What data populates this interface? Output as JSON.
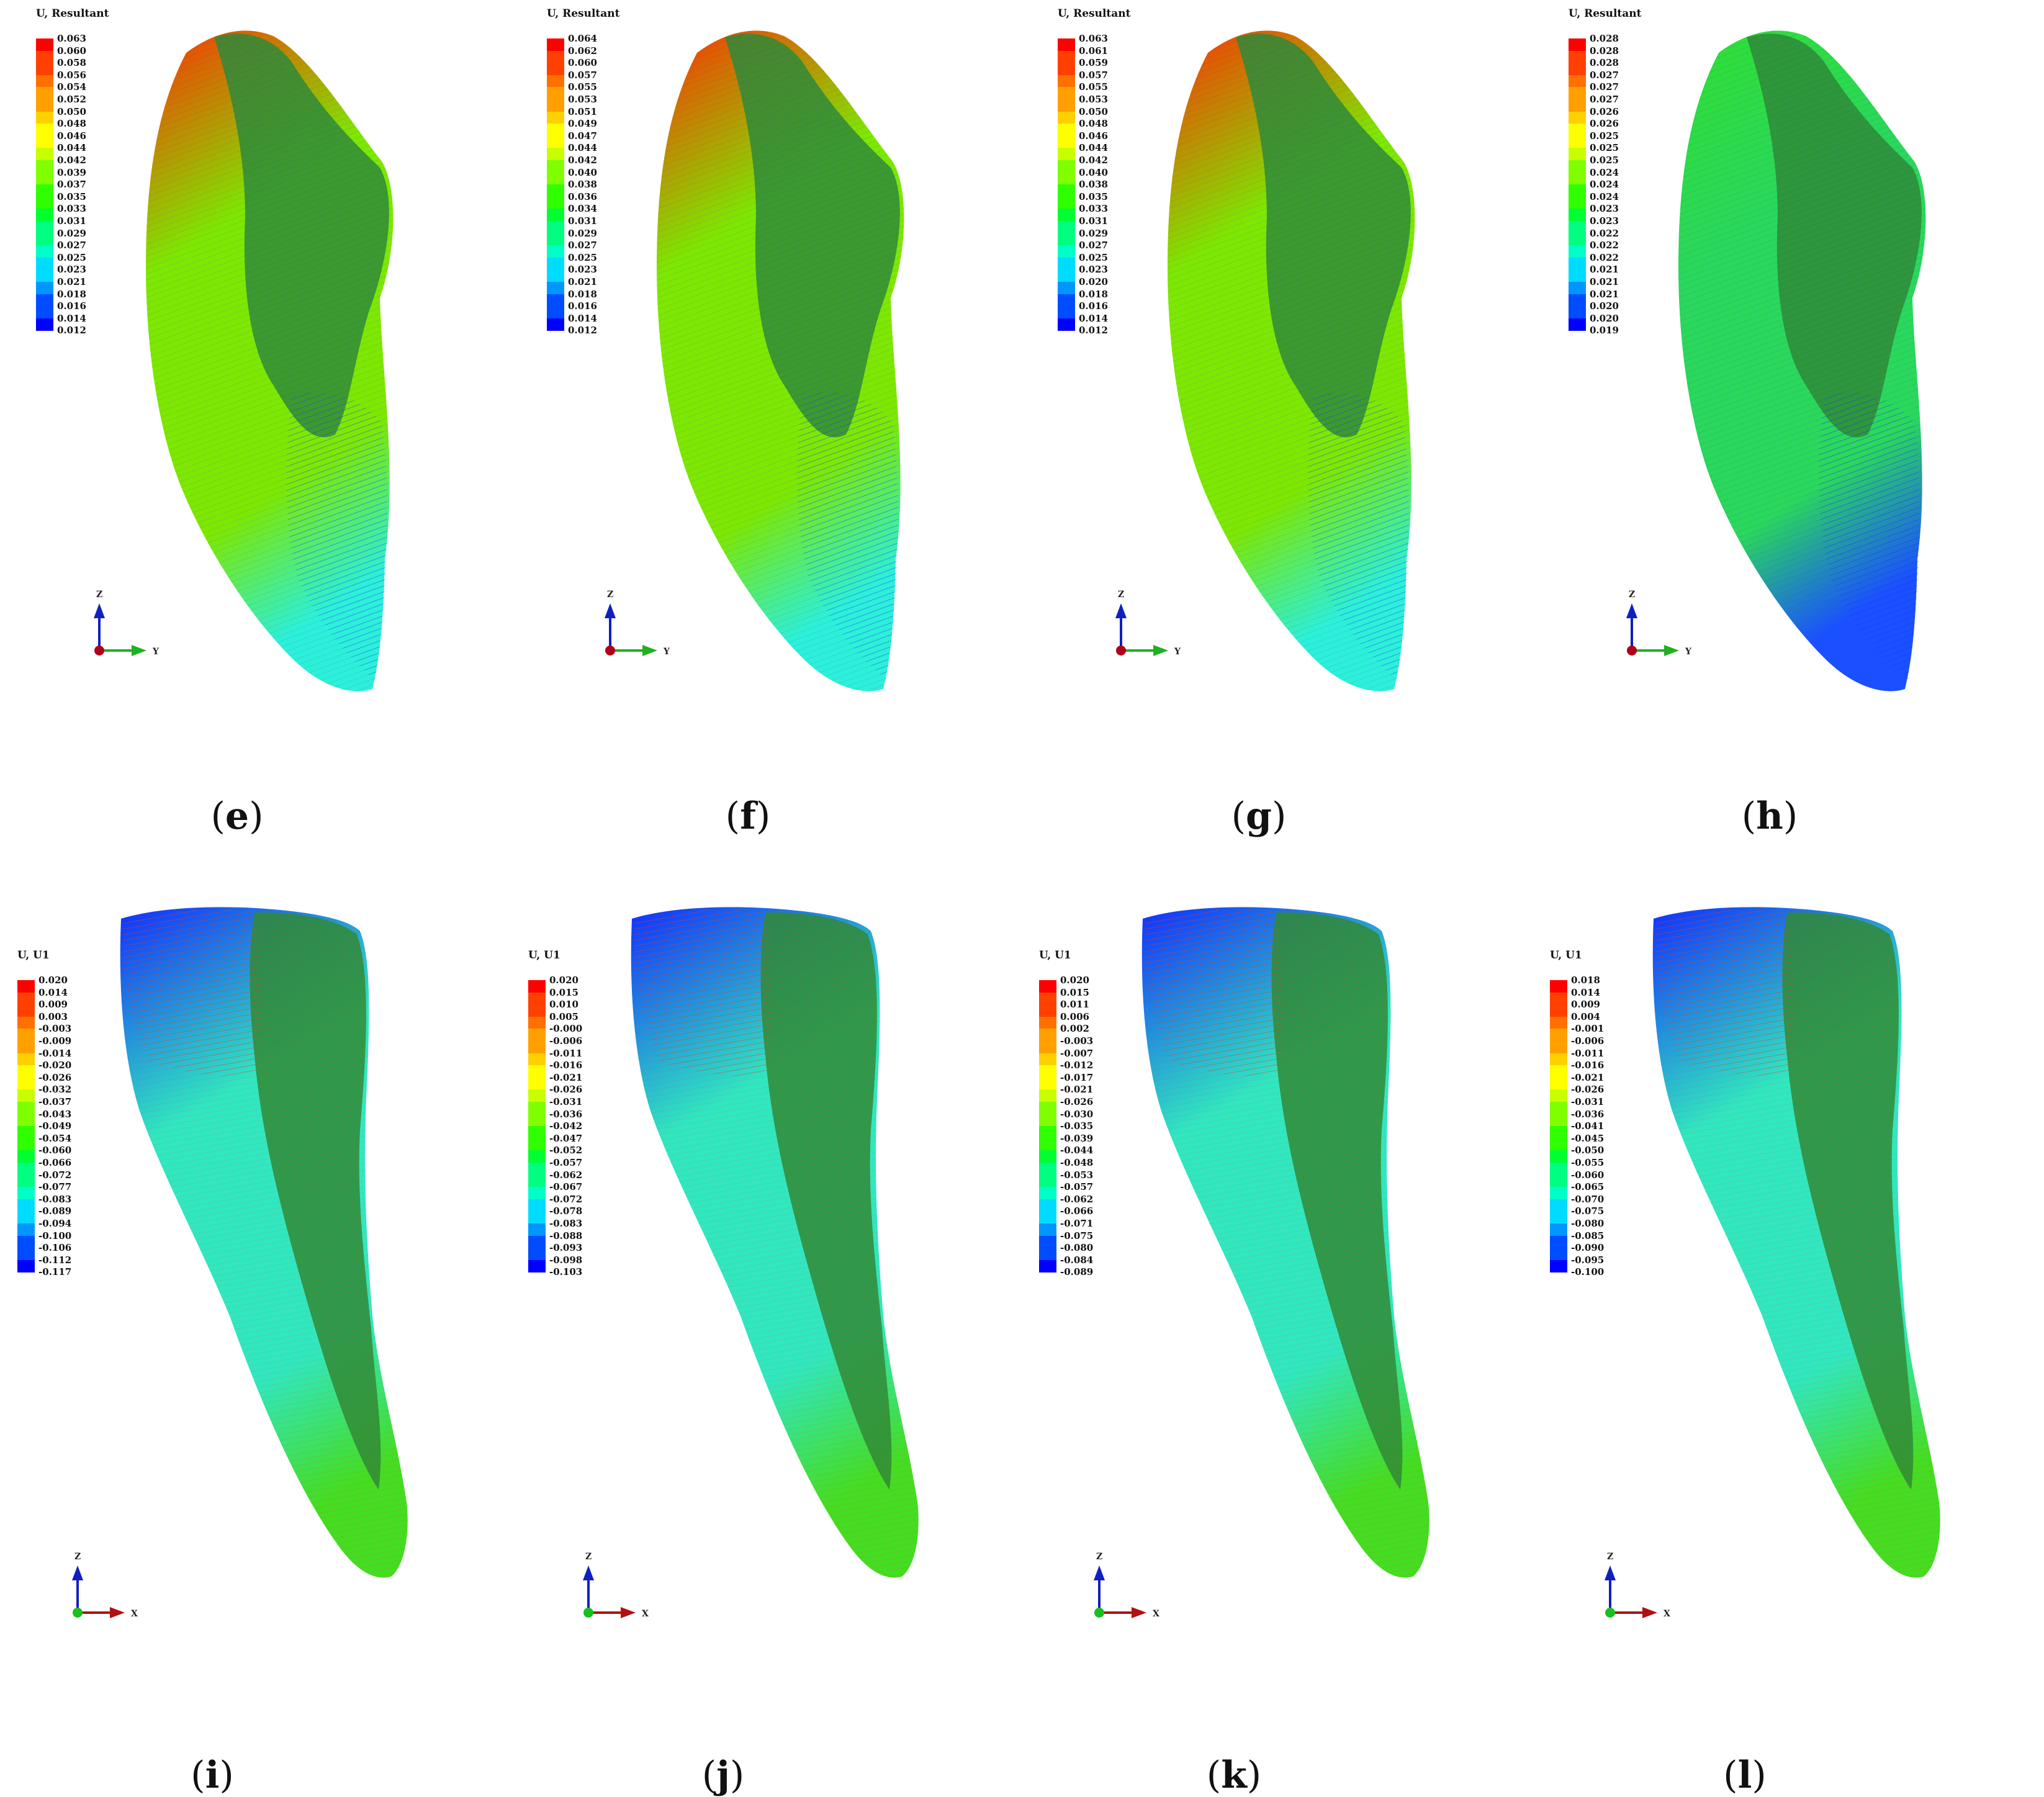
{
  "colormap": [
    "#0000ff",
    "#004cff",
    "#0096ff",
    "#00dcff",
    "#00ffc8",
    "#00ff80",
    "#00ff30",
    "#30ff00",
    "#80ff00",
    "#c8ff00",
    "#ffff00",
    "#ffd000",
    "#ffa000",
    "#ff7000",
    "#ff4000",
    "#ff0000"
  ],
  "panels": [
    {
      "id": "e",
      "caption": "e",
      "row": 0,
      "col": 0,
      "legend_title": "U, Resultant",
      "legend_values": [
        "0.063",
        "0.060",
        "0.058",
        "0.056",
        "0.054",
        "0.052",
        "0.050",
        "0.048",
        "0.046",
        "0.044",
        "0.042",
        "0.039",
        "0.037",
        "0.035",
        "0.033",
        "0.031",
        "0.029",
        "0.027",
        "0.025",
        "0.023",
        "0.021",
        "0.018",
        "0.016",
        "0.014",
        "0.012"
      ],
      "triad": {
        "up": "Z",
        "right": "Y",
        "out_color": "#b0001a"
      },
      "surface": {
        "top": "#ff3000",
        "mid": "#7ee800",
        "bottom": "#2cf0d8",
        "body": "#2f8b36",
        "arrows": "#1a3cff"
      }
    },
    {
      "id": "f",
      "caption": "f",
      "row": 0,
      "col": 1,
      "legend_title": "U, Resultant",
      "legend_values": [
        "0.064",
        "0.062",
        "0.060",
        "0.057",
        "0.055",
        "0.053",
        "0.051",
        "0.049",
        "0.047",
        "0.044",
        "0.042",
        "0.040",
        "0.038",
        "0.036",
        "0.034",
        "0.031",
        "0.029",
        "0.027",
        "0.025",
        "0.023",
        "0.021",
        "0.018",
        "0.016",
        "0.014",
        "0.012"
      ],
      "triad": {
        "up": "Z",
        "right": "Y",
        "out_color": "#b0001a"
      },
      "surface": {
        "top": "#ff3000",
        "mid": "#7ee800",
        "bottom": "#2cf0d8",
        "body": "#2f8b36",
        "arrows": "#1a3cff"
      }
    },
    {
      "id": "g",
      "caption": "g",
      "row": 0,
      "col": 2,
      "legend_title": "U, Resultant",
      "legend_values": [
        "0.063",
        "0.061",
        "0.059",
        "0.057",
        "0.055",
        "0.053",
        "0.050",
        "0.048",
        "0.046",
        "0.044",
        "0.042",
        "0.040",
        "0.038",
        "0.035",
        "0.033",
        "0.031",
        "0.029",
        "0.027",
        "0.025",
        "0.023",
        "0.020",
        "0.018",
        "0.016",
        "0.014",
        "0.012"
      ],
      "triad": {
        "up": "Z",
        "right": "Y",
        "out_color": "#b0001a"
      },
      "surface": {
        "top": "#ff3000",
        "mid": "#7ee800",
        "bottom": "#2cf0d8",
        "body": "#2f8b36",
        "arrows": "#1a3cff"
      }
    },
    {
      "id": "h",
      "caption": "h",
      "row": 0,
      "col": 3,
      "legend_title": "U, Resultant",
      "legend_values": [
        "0.028",
        "0.028",
        "0.028",
        "0.027",
        "0.027",
        "0.027",
        "0.026",
        "0.026",
        "0.025",
        "0.025",
        "0.025",
        "0.024",
        "0.024",
        "0.024",
        "0.023",
        "0.023",
        "0.022",
        "0.022",
        "0.022",
        "0.021",
        "0.021",
        "0.021",
        "0.020",
        "0.020",
        "0.019"
      ],
      "triad": {
        "up": "Z",
        "right": "Y",
        "out_color": "#b0001a"
      },
      "surface": {
        "top": "#30e030",
        "mid": "#2ad85a",
        "bottom": "#1a50ff",
        "body": "#2f8b36",
        "arrows": "#1a2cff"
      }
    },
    {
      "id": "i",
      "caption": "i",
      "row": 1,
      "col": 0,
      "legend_title": "U, U1",
      "legend_values": [
        "0.020",
        "0.014",
        "0.009",
        "0.003",
        "-0.003",
        "-0.009",
        "-0.014",
        "-0.020",
        "-0.026",
        "-0.032",
        "-0.037",
        "-0.043",
        "-0.049",
        "-0.054",
        "-0.060",
        "-0.066",
        "-0.072",
        "-0.077",
        "-0.083",
        "-0.089",
        "-0.094",
        "-0.100",
        "-0.106",
        "-0.112",
        "-0.117"
      ],
      "triad": {
        "up": "Z",
        "right": "X",
        "out_color": "#18c020"
      },
      "surface": {
        "top": "#1030ff",
        "mid": "#30e8c0",
        "bottom": "#44dd22",
        "body": "#2f8b36",
        "arrows": "#ff3010"
      }
    },
    {
      "id": "j",
      "caption": "j",
      "row": 1,
      "col": 1,
      "legend_title": "U, U1",
      "legend_values": [
        "0.020",
        "0.015",
        "0.010",
        "0.005",
        "-0.000",
        "-0.006",
        "-0.011",
        "-0.016",
        "-0.021",
        "-0.026",
        "-0.031",
        "-0.036",
        "-0.042",
        "-0.047",
        "-0.052",
        "-0.057",
        "-0.062",
        "-0.067",
        "-0.072",
        "-0.078",
        "-0.083",
        "-0.088",
        "-0.093",
        "-0.098",
        "-0.103"
      ],
      "triad": {
        "up": "Z",
        "right": "X",
        "out_color": "#18c020"
      },
      "surface": {
        "top": "#1030ff",
        "mid": "#30e8c0",
        "bottom": "#44dd22",
        "body": "#2f8b36",
        "arrows": "#ff3010"
      }
    },
    {
      "id": "k",
      "caption": "k",
      "row": 1,
      "col": 2,
      "legend_title": "U, U1",
      "legend_values": [
        "0.020",
        "0.015",
        "0.011",
        "0.006",
        "0.002",
        "-0.003",
        "-0.007",
        "-0.012",
        "-0.017",
        "-0.021",
        "-0.026",
        "-0.030",
        "-0.035",
        "-0.039",
        "-0.044",
        "-0.048",
        "-0.053",
        "-0.057",
        "-0.062",
        "-0.066",
        "-0.071",
        "-0.075",
        "-0.080",
        "-0.084",
        "-0.089"
      ],
      "triad": {
        "up": "Z",
        "right": "X",
        "out_color": "#18c020"
      },
      "surface": {
        "top": "#1030ff",
        "mid": "#30e8c0",
        "bottom": "#44dd22",
        "body": "#2f8b36",
        "arrows": "#ff3010"
      }
    },
    {
      "id": "l",
      "caption": "l",
      "row": 1,
      "col": 3,
      "legend_title": "U, U1",
      "legend_values": [
        "0.018",
        "0.014",
        "0.009",
        "0.004",
        "-0.001",
        "-0.006",
        "-0.011",
        "-0.016",
        "-0.021",
        "-0.026",
        "-0.031",
        "-0.036",
        "-0.041",
        "-0.045",
        "-0.050",
        "-0.055",
        "-0.060",
        "-0.065",
        "-0.070",
        "-0.075",
        "-0.080",
        "-0.085",
        "-0.090",
        "-0.095",
        "-0.100"
      ],
      "triad": {
        "up": "Z",
        "right": "X",
        "out_color": "#18c020"
      },
      "surface": {
        "top": "#1030ff",
        "mid": "#30e8c0",
        "bottom": "#44dd22",
        "body": "#2f8b36",
        "arrows": "#ff3010"
      }
    }
  ]
}
